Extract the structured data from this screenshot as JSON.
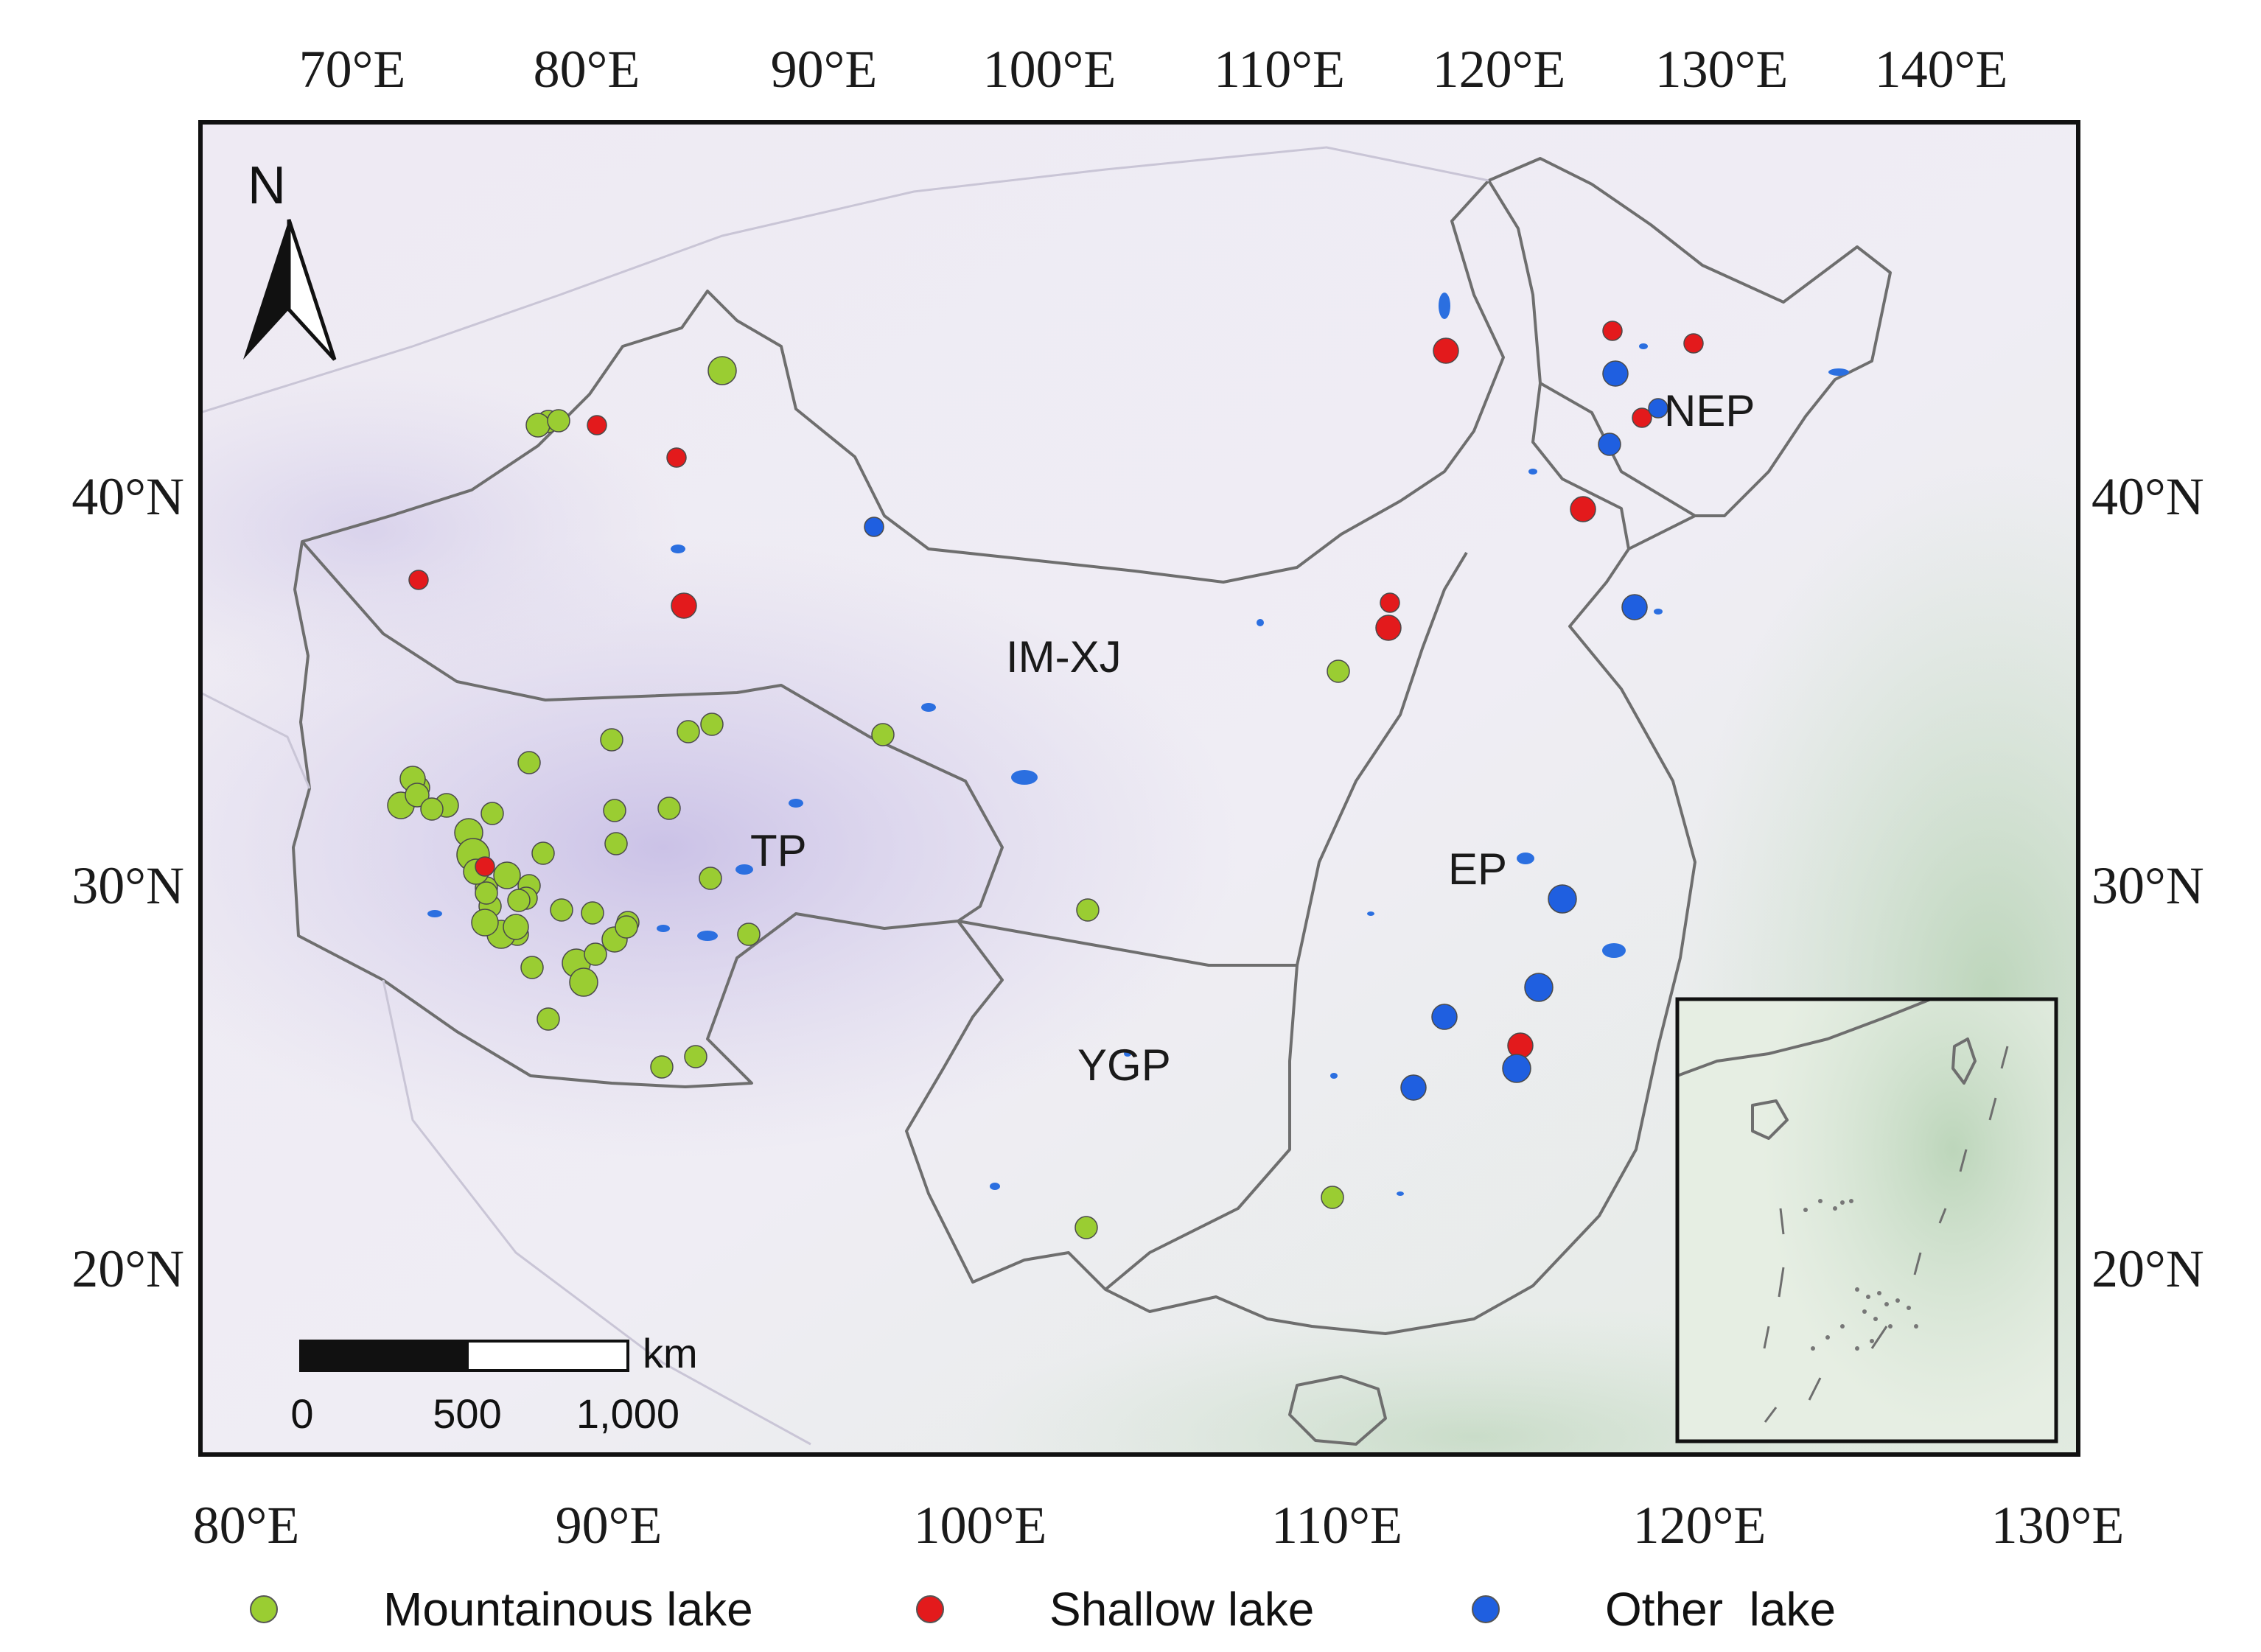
{
  "map": {
    "top_lon_labels": [
      "70°E",
      "80°E",
      "90°E",
      "100°E",
      "110°E",
      "120°E",
      "130°E",
      "140°E"
    ],
    "bottom_lon_labels": [
      "80°E",
      "90°E",
      "100°E",
      "110°E",
      "120°E",
      "130°E"
    ],
    "left_lat_labels": [
      "40°N",
      "30°N",
      "20°N"
    ],
    "right_lat_labels": [
      "40°N",
      "30°N",
      "20°N"
    ],
    "regions": [
      "IM-XJ",
      "NEP",
      "TP",
      "EP",
      "YGP"
    ],
    "north_arrow": {
      "label": "N",
      "icon": "north-arrow-icon"
    },
    "scale_bar": {
      "unit": "km",
      "labels": [
        "0",
        "500",
        "1,000"
      ]
    },
    "legend": [
      {
        "label": "Mountainous lake",
        "color": "#9acd32"
      },
      {
        "label": "Shallow lake",
        "color": "#e31a1c"
      },
      {
        "label": "Other  lake",
        "color": "#1f5fe0"
      }
    ],
    "colors": {
      "mountainous": "#9acd32",
      "shallow": "#e31a1c",
      "other": "#1f5fe0",
      "border": "#6e6e6e",
      "plateau": "#cbc3e6",
      "sea": "#cfe0cf"
    },
    "lake_sites": {
      "mountainous": [
        [
          358,
          277
        ],
        [
          367,
          286
        ],
        [
          347,
          278
        ],
        [
          336,
          276
        ],
        [
          322,
          270
        ],
        [
          312,
          276
        ],
        [
          307,
          270
        ],
        [
          326,
          295
        ],
        [
          330,
          292
        ],
        [
          339,
          290
        ],
        [
          346,
          306
        ],
        [
          356,
          314
        ],
        [
          360,
          320
        ],
        [
          359,
          320
        ],
        [
          375,
          325
        ],
        [
          352,
          321
        ],
        [
          339,
          329
        ],
        [
          344,
          330
        ],
        [
          341,
          328
        ],
        [
          374,
          344
        ],
        [
          377,
          346
        ],
        [
          366,
          330
        ],
        [
          393,
          330
        ],
        [
          411,
          334
        ],
        [
          439,
          317
        ],
        [
          299,
          368
        ],
        [
          375,
          374
        ],
        [
          374,
          361
        ],
        [
          307,
          367
        ],
        [
          321,
          361
        ],
        [
          327,
          354
        ],
        [
          324,
          350
        ],
        [
          329,
          350
        ],
        [
          364,
          377
        ],
        [
          378,
          385
        ],
        [
          390,
          373
        ],
        [
          296,
          367
        ],
        [
          334,
          363
        ],
        [
          413,
          331
        ],
        [
          311,
          270
        ],
        [
          305,
          269
        ],
        [
          309,
          305
        ],
        [
          307,
          302
        ],
        [
          303,
          299
        ],
        [
          300,
          293
        ],
        [
          304,
          291
        ],
        [
          338,
          298
        ],
        [
          312,
          309
        ],
        [
          315,
          313
        ],
        [
          318,
          314
        ],
        [
          325,
          318
        ],
        [
          334,
          320
        ]
      ],
      "shallow": [
        [
          341,
          302
        ],
        [
          349,
          292
        ],
        [
          350,
          312
        ],
        [
          322,
          322
        ],
        [
          333,
          343
        ],
        [
          343,
          341
        ],
        [
          352,
          313
        ],
        [
          357,
          320
        ],
        [
          470,
          348
        ],
        [
          478,
          343
        ],
        [
          415,
          336
        ],
        [
          472,
          334
        ],
        [
          475,
          318
        ]
      ],
      "other": [
        [
          390,
          325
        ],
        [
          403,
          336
        ],
        [
          412,
          315
        ],
        [
          418,
          334
        ],
        [
          426,
          340
        ],
        [
          436,
          342
        ],
        [
          443,
          341
        ],
        [
          449,
          343
        ],
        [
          460,
          343
        ],
        [
          464,
          337
        ]
      ]
    }
  }
}
